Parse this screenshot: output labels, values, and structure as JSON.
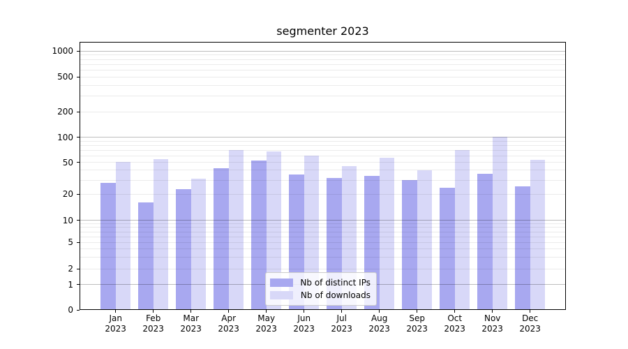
{
  "colors": {
    "distinct_ips_bar": "#a8a8f0",
    "downloads_bar": "#d8d8f8",
    "axis": "#000000",
    "major_grid": "#bdbdbd",
    "minor_grid": "#ebebeb",
    "legend_border": "#cccccc"
  },
  "chart_data": {
    "type": "bar",
    "title": "segmenter 2023",
    "categories": [
      "Jan 2023",
      "Feb 2023",
      "Mar 2023",
      "Apr 2023",
      "May 2023",
      "Jun 2023",
      "Jul 2023",
      "Aug 2023",
      "Sep 2023",
      "Oct 2023",
      "Nov 2023",
      "Dec 2023"
    ],
    "series": [
      {
        "name": "Nb of distinct IPs",
        "values": [
          28,
          16,
          23,
          42,
          53,
          35,
          32,
          34,
          30,
          24,
          36,
          25
        ]
      },
      {
        "name": "Nb of downloads",
        "values": [
          51,
          55,
          31,
          70,
          68,
          60,
          45,
          57,
          40,
          70,
          102,
          54
        ]
      }
    ],
    "xlabel": "",
    "ylabel": "",
    "yscale": "symlog",
    "ylim": [
      0,
      1300
    ],
    "yticks": [
      0,
      1,
      2,
      5,
      10,
      20,
      50,
      100,
      200,
      500,
      1000
    ],
    "minor_grid_values": [
      2,
      3,
      4,
      5,
      6,
      7,
      8,
      9,
      20,
      30,
      40,
      50,
      60,
      70,
      80,
      90,
      200,
      300,
      400,
      500,
      600,
      700,
      800,
      900
    ],
    "major_grid_values": [
      1,
      10,
      100,
      1000
    ],
    "grid": true,
    "legend_position": "lower center"
  }
}
